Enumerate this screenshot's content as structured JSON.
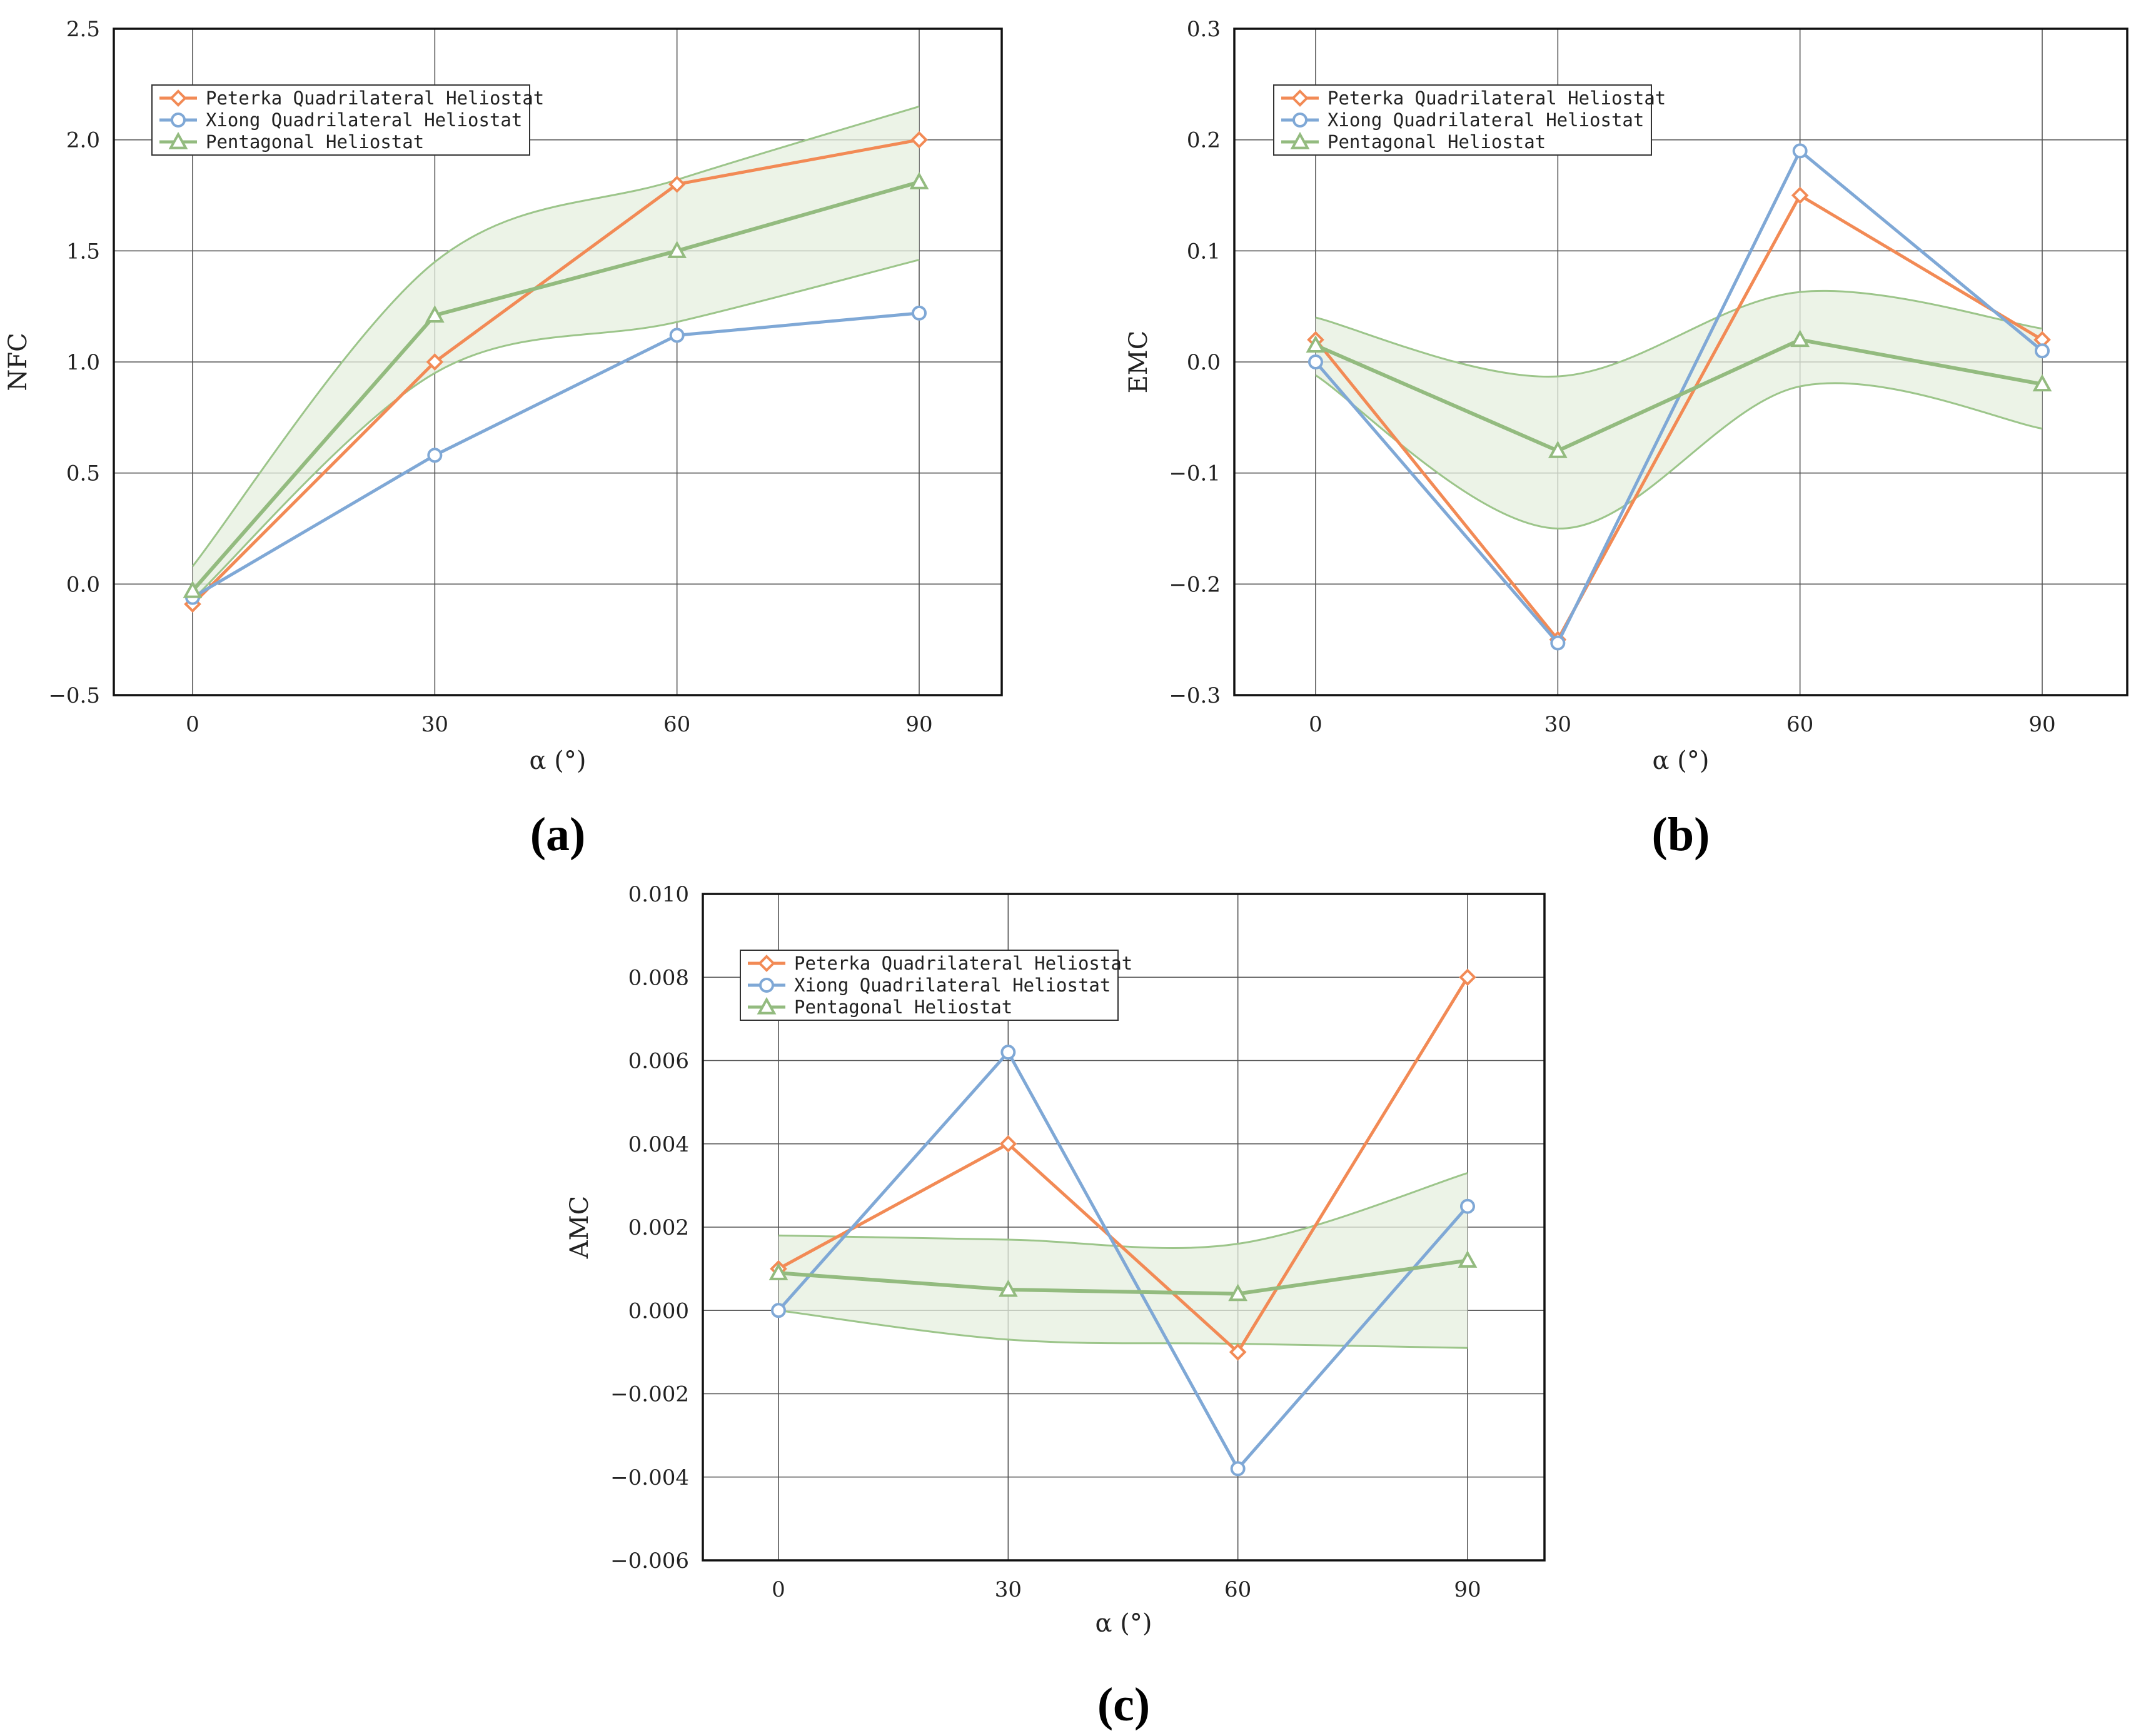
{
  "colors": {
    "peterka": "#f28a55",
    "xiong": "#7fa8d6",
    "pentagonal": "#93bb7f",
    "band_fill": "#e6efdf",
    "band_edge": "#9cc58a",
    "grid": "#555555"
  },
  "chart_data": [
    {
      "type": "line",
      "panel_label": "(a)",
      "xlabel": "α (°)",
      "ylabel": "NFC",
      "categories": [
        "0",
        "30",
        "60",
        "90"
      ],
      "ylim": [
        -0.5,
        2.5
      ],
      "yticks": [
        "−0.5",
        "0.0",
        "0.5",
        "1.0",
        "1.5",
        "2.0",
        "2.5"
      ],
      "ytick_values": [
        -0.5,
        0.0,
        0.5,
        1.0,
        1.5,
        2.0,
        2.5
      ],
      "legend": "top-left",
      "series": [
        {
          "name": "Peterka Quadrilateral Heliostat",
          "key": "peterka",
          "marker": "diamond",
          "values": [
            -0.09,
            1.0,
            1.8,
            2.0
          ]
        },
        {
          "name": "Xiong Quadrilateral Heliostat",
          "key": "xiong",
          "marker": "circle",
          "values": [
            -0.06,
            0.58,
            1.12,
            1.22
          ]
        },
        {
          "name": "Pentagonal Heliostat",
          "key": "pentagonal",
          "marker": "triangle",
          "values": [
            -0.03,
            1.21,
            1.5,
            1.81
          ]
        }
      ],
      "band": {
        "upper": [
          0.08,
          1.45,
          1.82,
          2.15
        ],
        "lower": [
          -0.07,
          0.95,
          1.18,
          1.46
        ]
      }
    },
    {
      "type": "line",
      "panel_label": "(b)",
      "xlabel": "α (°)",
      "ylabel": "EMC",
      "categories": [
        "0",
        "30",
        "60",
        "90"
      ],
      "ylim": [
        -0.3,
        0.3
      ],
      "yticks": [
        "−0.3",
        "−0.2",
        "−0.1",
        "0.0",
        "0.1",
        "0.2",
        "0.3"
      ],
      "ytick_values": [
        -0.3,
        -0.2,
        -0.1,
        0.0,
        0.1,
        0.2,
        0.3
      ],
      "legend": "top-left",
      "series": [
        {
          "name": "Peterka Quadrilateral Heliostat",
          "key": "peterka",
          "marker": "diamond",
          "values": [
            0.02,
            -0.25,
            0.15,
            0.02
          ]
        },
        {
          "name": "Xiong Quadrilateral Heliostat",
          "key": "xiong",
          "marker": "circle",
          "values": [
            0.0,
            -0.253,
            0.19,
            0.01
          ]
        },
        {
          "name": "Pentagonal Heliostat",
          "key": "pentagonal",
          "marker": "triangle",
          "values": [
            0.015,
            -0.08,
            0.02,
            -0.02
          ]
        }
      ],
      "band": {
        "upper": [
          0.04,
          -0.013,
          0.063,
          0.03
        ],
        "lower": [
          -0.012,
          -0.15,
          -0.022,
          -0.06
        ]
      }
    },
    {
      "type": "line",
      "panel_label": "(c)",
      "xlabel": "α (°)",
      "ylabel": "AMC",
      "categories": [
        "0",
        "30",
        "60",
        "90"
      ],
      "ylim": [
        -0.006,
        0.01
      ],
      "yticks": [
        "−0.006",
        "−0.004",
        "−0.002",
        "0.000",
        "0.002",
        "0.004",
        "0.006",
        "0.008",
        "0.010"
      ],
      "ytick_values": [
        -0.006,
        -0.004,
        -0.002,
        0.0,
        0.002,
        0.004,
        0.006,
        0.008,
        0.01
      ],
      "legend": "top-left",
      "series": [
        {
          "name": "Peterka Quadrilateral Heliostat",
          "key": "peterka",
          "marker": "diamond",
          "values": [
            0.001,
            0.004,
            -0.001,
            0.008
          ]
        },
        {
          "name": "Xiong Quadrilateral Heliostat",
          "key": "xiong",
          "marker": "circle",
          "values": [
            0.0,
            0.0062,
            -0.0038,
            0.0025
          ]
        },
        {
          "name": "Pentagonal Heliostat",
          "key": "pentagonal",
          "marker": "triangle",
          "values": [
            0.0009,
            0.0005,
            0.0004,
            0.0012
          ]
        }
      ],
      "band": {
        "upper": [
          0.0018,
          0.0017,
          0.0016,
          0.0033
        ],
        "lower": [
          0.0,
          -0.0007,
          -0.0008,
          -0.0009
        ]
      }
    }
  ]
}
